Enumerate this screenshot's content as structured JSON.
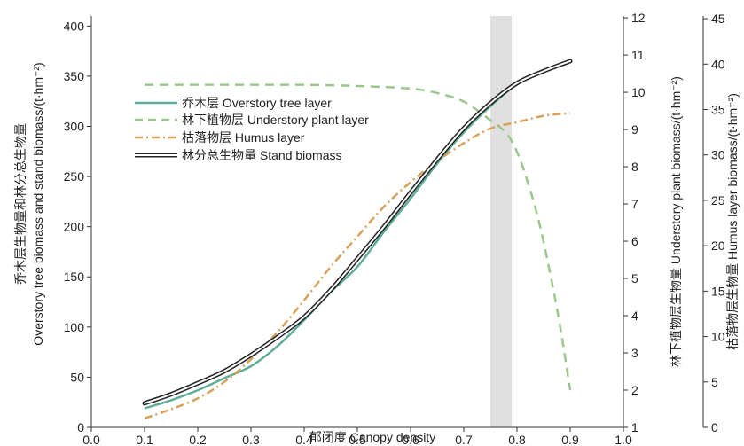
{
  "chart_data": {
    "type": "line",
    "xlabel": "郁闭度 Canopy density",
    "ylabel_left_cn": "乔木层生物量和林分总生物量",
    "ylabel_left_en": "Overstory tree biomass and stand biomass/(t·hm⁻²)",
    "ylabel_right1": "林下植物层生物量 Understory plant biomass/(t·hm⁻²)",
    "ylabel_right2": "枯落物层生物量 Humus layer biomass/(t·hm⁻²)",
    "x_ticks": [
      "0.0",
      "0.1",
      "0.2",
      "0.3",
      "0.4",
      "0.5",
      "0.6",
      "0.7",
      "0.8",
      "0.9",
      "1.0"
    ],
    "y_left_ticks": [
      "0",
      "50",
      "100",
      "150",
      "200",
      "250",
      "300",
      "350",
      "400"
    ],
    "y_right1_ticks": [
      "1",
      "2",
      "3",
      "4",
      "5",
      "6",
      "7",
      "8",
      "9",
      "10",
      "11",
      "12"
    ],
    "y_right2_ticks": [
      "0",
      "5",
      "10",
      "15",
      "20",
      "25",
      "30",
      "35",
      "40",
      "45"
    ],
    "xlim": [
      0,
      1.0
    ],
    "ylim_left": [
      0,
      410
    ],
    "ylim_right1": [
      1,
      12.05
    ],
    "ylim_right2": [
      0,
      45.3
    ],
    "shaded_band_x": [
      0.75,
      0.79
    ],
    "grid": false,
    "legend_position": "left",
    "series": [
      {
        "name": "乔木层 Overstory tree layer",
        "axis": "left",
        "color": "#5fae9a",
        "style": "solid",
        "x": [
          0.1,
          0.15,
          0.2,
          0.25,
          0.3,
          0.35,
          0.4,
          0.45,
          0.5,
          0.55,
          0.6,
          0.65,
          0.7,
          0.75,
          0.8,
          0.85,
          0.9
        ],
        "y": [
          19,
          27,
          37,
          49,
          61,
          81,
          107,
          135,
          160,
          195,
          228,
          263,
          294,
          320,
          342,
          355,
          365
        ]
      },
      {
        "name": "林下植物层 Understory plant layer",
        "axis": "right1",
        "color": "#99c98a",
        "style": "dashed",
        "x": [
          0.1,
          0.2,
          0.3,
          0.4,
          0.5,
          0.6,
          0.65,
          0.7,
          0.75,
          0.78,
          0.8,
          0.82,
          0.84,
          0.86,
          0.88,
          0.9
        ],
        "y": [
          10.2,
          10.2,
          10.2,
          10.2,
          10.17,
          10.1,
          9.98,
          9.75,
          9.25,
          8.9,
          8.4,
          7.6,
          6.6,
          5.3,
          3.8,
          2.0
        ]
      },
      {
        "name": "枯落物层 Humus layer",
        "axis": "right2",
        "color": "#d8a15a",
        "style": "dashdot",
        "x": [
          0.1,
          0.15,
          0.2,
          0.25,
          0.3,
          0.35,
          0.4,
          0.45,
          0.5,
          0.55,
          0.6,
          0.65,
          0.7,
          0.75,
          0.8,
          0.85,
          0.9
        ],
        "y": [
          1.0,
          2.0,
          3.2,
          5.0,
          7.5,
          10.5,
          14.0,
          17.7,
          21.0,
          24.3,
          27.0,
          29.3,
          31.3,
          32.9,
          33.6,
          34.3,
          34.6
        ]
      },
      {
        "name": "林分总生物量 Stand biomass",
        "axis": "left",
        "color": "#222222",
        "style": "double",
        "x": [
          0.1,
          0.15,
          0.2,
          0.25,
          0.3,
          0.35,
          0.4,
          0.45,
          0.5,
          0.55,
          0.6,
          0.65,
          0.7,
          0.75,
          0.8,
          0.85,
          0.9
        ],
        "y": [
          24,
          33,
          44,
          56,
          72,
          90,
          110,
          137,
          168,
          200,
          234,
          267,
          298,
          323,
          343,
          355,
          365
        ]
      }
    ]
  }
}
